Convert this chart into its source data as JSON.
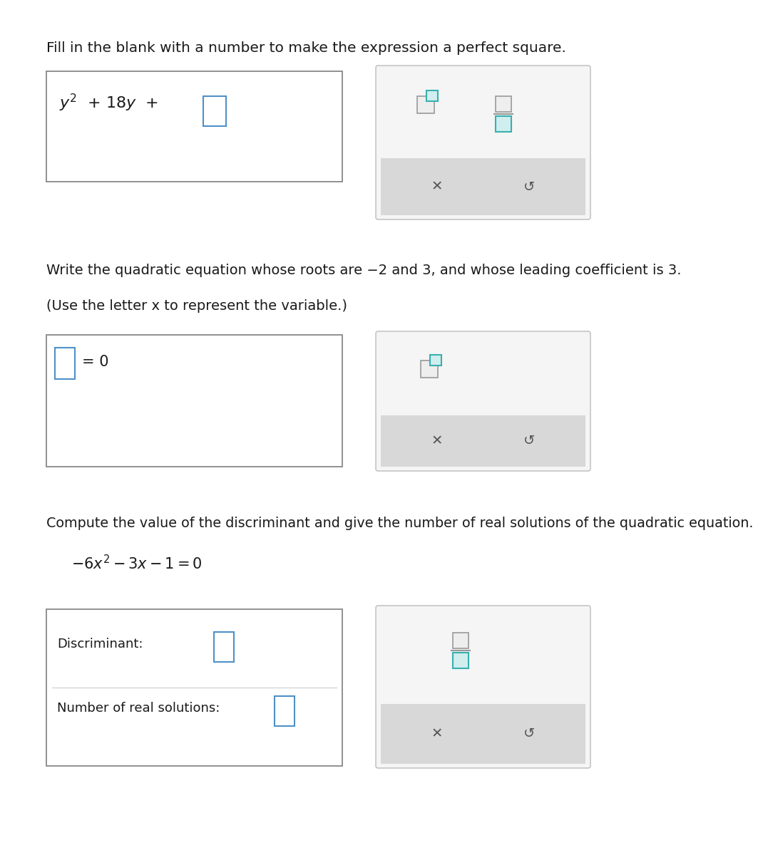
{
  "bg_color": "#ffffff",
  "text_color": "#1a1a1a",
  "border_color": "#888888",
  "tool_border_color": "#bbbbbb",
  "tool_bg": "#f5f5f5",
  "gray_strip_color": "#d8d8d8",
  "blue_color": "#4f90c8",
  "teal_color": "#3aafaf",
  "teal_fill": "#d0eeee",
  "s1_instr": "Fill in the blank with a number to make the expression a perfect square.",
  "s2_instr1": "Write the quadratic equation whose roots are −2 and 3, and whose leading coefficient is 3.",
  "s2_instr2": "(Use the letter x to represent the variable.)",
  "s3_instr": "Compute the value of the discriminant and give the number of real solutions of the quadratic equation.",
  "s3_eq": "$-6x^2-3x-1=0$",
  "figw": 10.77,
  "figh": 12.0,
  "dpi": 100
}
